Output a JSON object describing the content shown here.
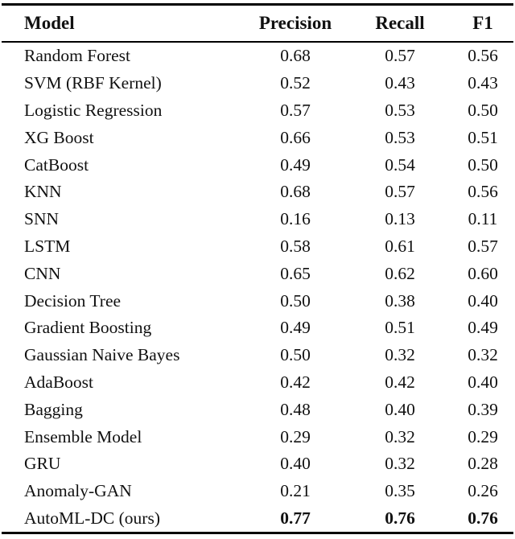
{
  "page": {
    "background_color": "#ffffff",
    "text_color": "#111111",
    "rule_color": "#000000"
  },
  "table": {
    "columns": [
      "Model",
      "Precision",
      "Recall",
      "F1"
    ],
    "rows": [
      {
        "model": "Random Forest",
        "precision": "0.68",
        "recall": "0.57",
        "f1": "0.56",
        "bold": false
      },
      {
        "model": "SVM (RBF Kernel)",
        "precision": "0.52",
        "recall": "0.43",
        "f1": "0.43",
        "bold": false
      },
      {
        "model": "Logistic Regression",
        "precision": "0.57",
        "recall": "0.53",
        "f1": "0.50",
        "bold": false
      },
      {
        "model": "XG Boost",
        "precision": "0.66",
        "recall": "0.53",
        "f1": "0.51",
        "bold": false
      },
      {
        "model": "CatBoost",
        "precision": "0.49",
        "recall": "0.54",
        "f1": "0.50",
        "bold": false
      },
      {
        "model": "KNN",
        "precision": "0.68",
        "recall": "0.57",
        "f1": "0.56",
        "bold": false
      },
      {
        "model": "SNN",
        "precision": "0.16",
        "recall": "0.13",
        "f1": "0.11",
        "bold": false
      },
      {
        "model": "LSTM",
        "precision": "0.58",
        "recall": "0.61",
        "f1": "0.57",
        "bold": false
      },
      {
        "model": "CNN",
        "precision": "0.65",
        "recall": "0.62",
        "f1": "0.60",
        "bold": false
      },
      {
        "model": "Decision Tree",
        "precision": "0.50",
        "recall": "0.38",
        "f1": "0.40",
        "bold": false
      },
      {
        "model": "Gradient Boosting",
        "precision": "0.49",
        "recall": "0.51",
        "f1": "0.49",
        "bold": false
      },
      {
        "model": "Gaussian Naive Bayes",
        "precision": "0.50",
        "recall": "0.32",
        "f1": "0.32",
        "bold": false
      },
      {
        "model": "AdaBoost",
        "precision": "0.42",
        "recall": "0.42",
        "f1": "0.40",
        "bold": false
      },
      {
        "model": "Bagging",
        "precision": "0.48",
        "recall": "0.40",
        "f1": "0.39",
        "bold": false
      },
      {
        "model": "Ensemble Model",
        "precision": "0.29",
        "recall": "0.32",
        "f1": "0.29",
        "bold": false
      },
      {
        "model": "GRU",
        "precision": "0.40",
        "recall": "0.32",
        "f1": "0.28",
        "bold": false
      },
      {
        "model": "Anomaly-GAN",
        "precision": "0.21",
        "recall": "0.35",
        "f1": "0.26",
        "bold": false
      },
      {
        "model": "AutoML-DC (ours)",
        "precision": "0.77",
        "recall": "0.76",
        "f1": "0.76",
        "bold": true
      }
    ]
  }
}
